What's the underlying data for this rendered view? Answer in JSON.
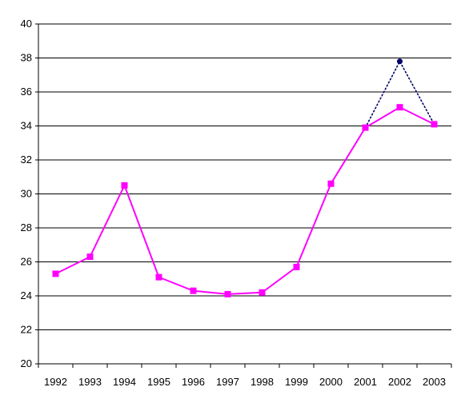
{
  "chart_data": {
    "type": "line",
    "categories": [
      "1992",
      "1993",
      "1994",
      "1995",
      "1996",
      "1997",
      "1998",
      "1999",
      "2000",
      "2001",
      "2002",
      "2003"
    ],
    "ylim": [
      20,
      40
    ],
    "yticks": [
      "20",
      "22",
      "24",
      "26",
      "28",
      "30",
      "32",
      "34",
      "36",
      "38",
      "40"
    ],
    "grid": true,
    "legend": "none",
    "series": [
      {
        "color": "#ff00ff",
        "line_style": "solid",
        "marker": "square",
        "values": [
          25.3,
          26.3,
          30.5,
          25.1,
          24.3,
          24.1,
          24.2,
          25.7,
          30.6,
          33.9,
          35.1,
          34.1
        ]
      },
      {
        "color": "#000066",
        "line_style": "dotted",
        "marker": "circle",
        "values": [
          null,
          null,
          null,
          null,
          null,
          null,
          null,
          null,
          null,
          33.9,
          37.8,
          34.1
        ]
      }
    ]
  }
}
